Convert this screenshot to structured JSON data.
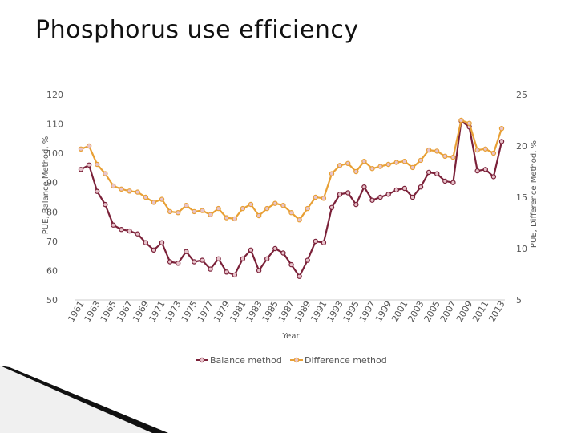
{
  "page": {
    "title": "Phosphorus use efficiency"
  },
  "chart_data": {
    "type": "line",
    "xlabel": "Year",
    "ylabel_left": "PUE, Balance Method, %",
    "ylabel_right": "PUE, Difference Method, %",
    "ylim_left": [
      50,
      120
    ],
    "ylim_right": [
      5,
      25
    ],
    "yticks_left": [
      "50",
      "60",
      "70",
      "80",
      "90",
      "100",
      "110",
      "120"
    ],
    "yticks_right": [
      "5",
      "10",
      "15",
      "20",
      "25"
    ],
    "x": [
      1961,
      1962,
      1963,
      1964,
      1965,
      1966,
      1967,
      1968,
      1969,
      1970,
      1971,
      1972,
      1973,
      1974,
      1975,
      1976,
      1977,
      1978,
      1979,
      1980,
      1981,
      1982,
      1983,
      1984,
      1985,
      1986,
      1987,
      1988,
      1989,
      1990,
      1991,
      1992,
      1993,
      1994,
      1995,
      1996,
      1997,
      1998,
      1999,
      2000,
      2001,
      2002,
      2003,
      2004,
      2005,
      2006,
      2007,
      2008,
      2009,
      2010,
      2011,
      2012,
      2013
    ],
    "x_tick_labels": [
      "1961",
      "1963",
      "1965",
      "1967",
      "1969",
      "1971",
      "1973",
      "1975",
      "1977",
      "1979",
      "1981",
      "1983",
      "1985",
      "1987",
      "1989",
      "1991",
      "1993",
      "1995",
      "1997",
      "1999",
      "2001",
      "2003",
      "2005",
      "2007",
      "2009",
      "2011",
      "2013"
    ],
    "series": [
      {
        "name": "Balance method",
        "axis": "left",
        "color": "#7b2139",
        "values": [
          94.5,
          96,
          87,
          82.5,
          75.5,
          74,
          73.5,
          72.5,
          69.5,
          67,
          69.5,
          63,
          62.5,
          66.5,
          63,
          63.5,
          60.5,
          64,
          59.5,
          58.5,
          64,
          67,
          60,
          64,
          67.5,
          66,
          62,
          58,
          63.5,
          70,
          69.5,
          81.5,
          86,
          86.5,
          82.5,
          88.5,
          84,
          85,
          86,
          87.5,
          88,
          85,
          88.5,
          93.5,
          93,
          90.5,
          90,
          111,
          109,
          94,
          94.5,
          92,
          104
        ]
      },
      {
        "name": "Difference method",
        "axis": "right",
        "color": "#e8a035",
        "values": [
          19.7,
          20,
          18.2,
          17.3,
          16.1,
          15.8,
          15.6,
          15.5,
          15,
          14.5,
          14.8,
          13.6,
          13.5,
          14.2,
          13.6,
          13.7,
          13.3,
          13.9,
          13,
          12.9,
          13.9,
          14.3,
          13.2,
          13.9,
          14.4,
          14.2,
          13.5,
          12.8,
          13.9,
          15,
          14.9,
          17.3,
          18.1,
          18.3,
          17.5,
          18.5,
          17.8,
          18,
          18.2,
          18.4,
          18.5,
          17.9,
          18.6,
          19.6,
          19.5,
          19,
          18.9,
          22.5,
          22.2,
          19.6,
          19.7,
          19.3,
          21.7
        ]
      }
    ],
    "legend": {
      "placement": "bottom",
      "entries": [
        "Balance method",
        "Difference method"
      ]
    },
    "grid": false
  }
}
